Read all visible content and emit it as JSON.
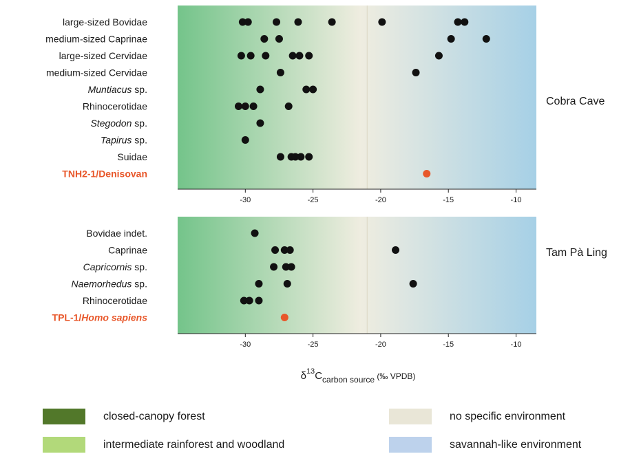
{
  "chart_data": {
    "type": "scatter",
    "xlabel": {
      "base": "δ",
      "sup": "13",
      "main": "C",
      "sub": "carbon source",
      "unit": " (‰ VPDB)"
    },
    "xlim": [
      -35,
      -8.5
    ],
    "xticks": [
      -30,
      -25,
      -20,
      -15,
      -10
    ],
    "divider_x": -21,
    "highlight_color": "#e8572a",
    "point_color": "#111111",
    "background_gradient": [
      "#74c48a",
      "#efede0",
      "#a6d0e6"
    ],
    "panels": [
      {
        "site": "Cobra Cave",
        "categories": [
          {
            "label": "large-sized Bovidae",
            "italic": "",
            "values": [
              -30.2,
              -29.8,
              -27.7,
              -26.1,
              -23.6,
              -19.9,
              -14.3,
              -13.8
            ]
          },
          {
            "label": "medium-sized Caprinae",
            "italic": "",
            "values": [
              -28.6,
              -27.5,
              -14.8,
              -12.2
            ]
          },
          {
            "label": "large-sized Cervidae",
            "italic": "",
            "values": [
              -30.3,
              -29.6,
              -28.5,
              -26.5,
              -26.0,
              -25.3,
              -15.7
            ]
          },
          {
            "label": "medium-sized Cervidae",
            "italic": "",
            "values": [
              -27.4,
              -17.4
            ]
          },
          {
            "label": " sp.",
            "italic": "Muntiacus",
            "values": [
              -28.9,
              -25.5,
              -25.0
            ]
          },
          {
            "label": "Rhinocerotidae",
            "italic": "",
            "values": [
              -30.5,
              -30.0,
              -29.4,
              -26.8
            ]
          },
          {
            "label": " sp.",
            "italic": "Stegodon",
            "values": [
              -28.9
            ]
          },
          {
            "label": " sp.",
            "italic": "Tapirus",
            "values": [
              -30.0
            ]
          },
          {
            "label": "Suidae",
            "italic": "",
            "values": [
              -27.4,
              -26.6,
              -26.3,
              -25.9,
              -25.3
            ]
          },
          {
            "label": "TNH2-1/Denisovan",
            "italic": "",
            "highlight": true,
            "values": [
              -16.6
            ]
          }
        ]
      },
      {
        "site": "Tam Pà Ling",
        "categories": [
          {
            "label": "Bovidae indet.",
            "italic": "",
            "values": [
              -29.3
            ]
          },
          {
            "label": "Caprinae",
            "italic": "",
            "values": [
              -27.8,
              -27.1,
              -26.7,
              -18.9
            ]
          },
          {
            "label": " sp.",
            "italic": "Capricornis",
            "values": [
              -27.9,
              -27.0,
              -26.6
            ]
          },
          {
            "label": " sp.",
            "italic": "Naemorhedus",
            "values": [
              -29.0,
              -26.9,
              -17.6
            ]
          },
          {
            "label": "Rhinocerotidae",
            "italic": "",
            "values": [
              -30.1,
              -29.7,
              -29.0
            ]
          },
          {
            "label": "TPL-1/",
            "italic": "Homo sapiens",
            "highlight": true,
            "values": [
              -27.1
            ]
          }
        ]
      }
    ]
  },
  "legend": [
    {
      "label": "closed-canopy forest",
      "color": "#52782a"
    },
    {
      "label": "intermediate rainforest and woodland",
      "color": "#b2d97a"
    },
    {
      "label": "no specific environment",
      "color": "#e9e6d7"
    },
    {
      "label": "savannah-like environment",
      "color": "#bdd2ec"
    }
  ]
}
